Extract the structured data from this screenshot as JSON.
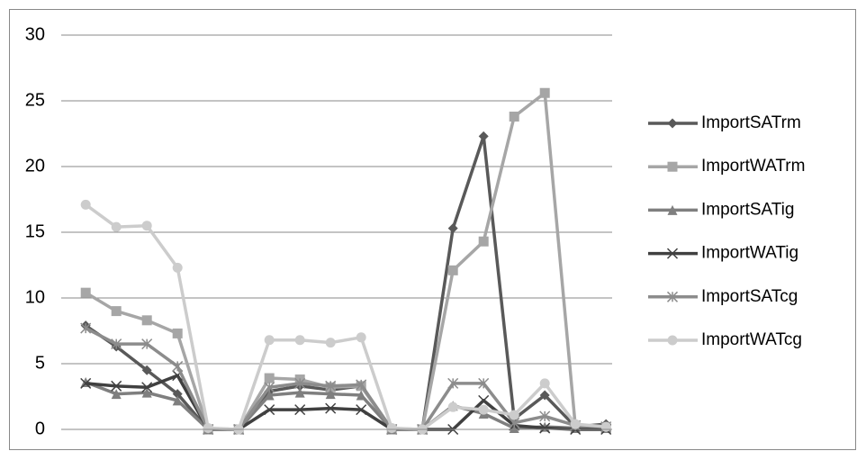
{
  "chart_data": {
    "type": "line",
    "categories": [
      null,
      null,
      null,
      null,
      null,
      null,
      null,
      null,
      null,
      null,
      null,
      null,
      null,
      null,
      null,
      null,
      null,
      null
    ],
    "ylim": [
      0,
      30
    ],
    "yticks": [
      0,
      5,
      10,
      15,
      20,
      25,
      30
    ],
    "grid": true,
    "legend": "right",
    "series": [
      {
        "name": "ImportSATrm",
        "color": "#595959",
        "marker": "diamond",
        "values": [
          7.9,
          6.3,
          4.5,
          2.7,
          0,
          0,
          2.9,
          3.3,
          3.0,
          3.3,
          0,
          0,
          15.3,
          22.3,
          0.8,
          2.6,
          0.2,
          0.4
        ]
      },
      {
        "name": "ImportWATrm",
        "color": "#a6a6a6",
        "marker": "square",
        "values": [
          10.4,
          9.0,
          8.3,
          7.3,
          0,
          0,
          3.9,
          3.8,
          3.2,
          3.3,
          0,
          0,
          12.1,
          14.3,
          23.8,
          25.6,
          0.2,
          0.1
        ]
      },
      {
        "name": "ImportSATig",
        "color": "#7f7f7f",
        "marker": "triangle",
        "values": [
          3.6,
          2.7,
          2.8,
          2.2,
          0,
          0,
          2.6,
          2.8,
          2.7,
          2.6,
          0,
          0,
          1.8,
          1.2,
          0.1,
          0.2,
          0.1,
          0.1
        ]
      },
      {
        "name": "ImportWATig",
        "color": "#404040",
        "marker": "x",
        "values": [
          3.5,
          3.3,
          3.2,
          4.1,
          0,
          0,
          1.5,
          1.5,
          1.6,
          1.5,
          0,
          0,
          0,
          2.2,
          0.3,
          0.1,
          0,
          0
        ]
      },
      {
        "name": "ImportSATcg",
        "color": "#8c8c8c",
        "marker": "asterisk",
        "values": [
          7.7,
          6.5,
          6.5,
          4.8,
          0,
          0,
          3.2,
          3.5,
          3.3,
          3.4,
          0,
          0,
          3.5,
          3.5,
          0.5,
          1.0,
          0.3,
          0.2
        ]
      },
      {
        "name": "ImportWATcg",
        "color": "#cccccc",
        "marker": "circle",
        "values": [
          17.1,
          15.4,
          15.5,
          12.3,
          0.1,
          0,
          6.8,
          6.8,
          6.6,
          7.0,
          0.1,
          0,
          1.7,
          1.5,
          1.1,
          3.5,
          0.4,
          0.2
        ]
      }
    ]
  }
}
